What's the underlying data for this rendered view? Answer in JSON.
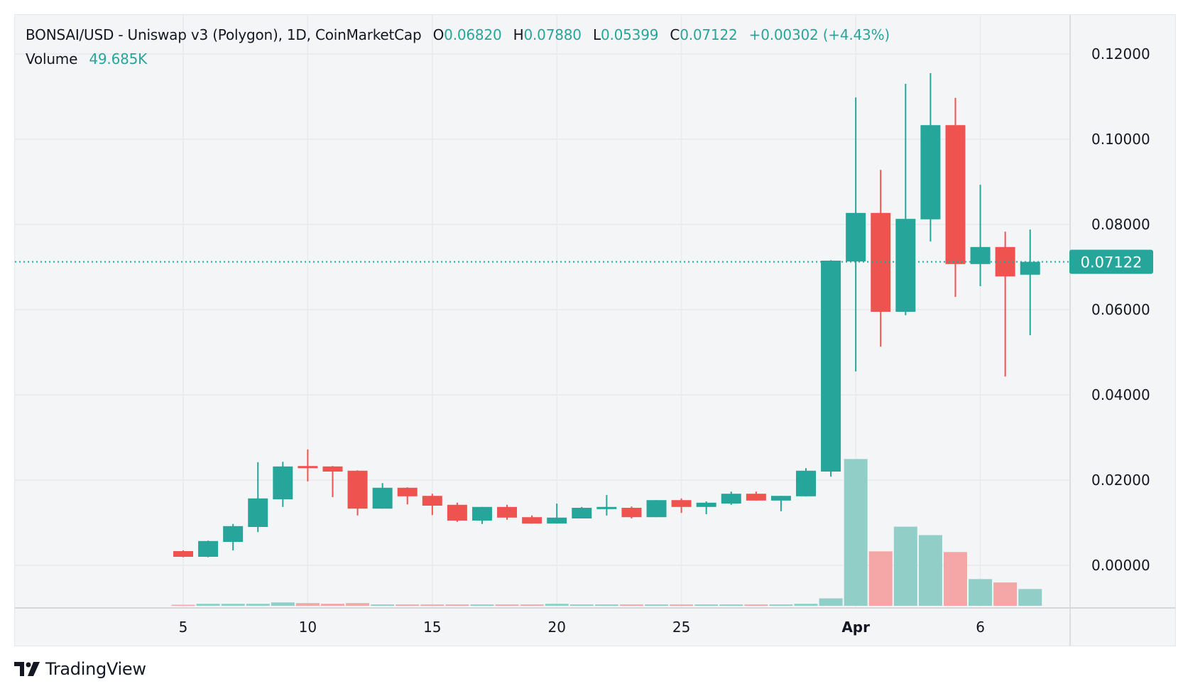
{
  "header": {
    "symbol_title": "BONSAI/USD - Uniswap v3 (Polygon), 1D, CoinMarketCap",
    "open_label": "O",
    "open_value": "0.06820",
    "high_label": "H",
    "high_value": "0.07880",
    "low_label": "L",
    "low_value": "0.05399",
    "close_label": "C",
    "close_value": "0.07122",
    "change": "+0.00302 (+4.43%)",
    "volume_label": "Volume",
    "volume_value": "49.685K"
  },
  "branding": {
    "logo_text": "TradingView"
  },
  "colors": {
    "up": "#26a69a",
    "down": "#ef5350",
    "up_volume": "#92cec8",
    "down_volume": "#f4a7a6",
    "grid": "#e9eaed",
    "background": "#f4f5f7"
  },
  "chart_data": {
    "type": "candlestick",
    "title": "BONSAI/USD - Uniswap v3 (Polygon), 1D, CoinMarketCap",
    "x_tick_labels": [
      {
        "date": "Mar 5",
        "label": "5"
      },
      {
        "date": "Mar 10",
        "label": "10"
      },
      {
        "date": "Mar 15",
        "label": "15"
      },
      {
        "date": "Mar 20",
        "label": "20"
      },
      {
        "date": "Mar 25",
        "label": "25"
      },
      {
        "date": "Apr 1",
        "label": "Apr"
      },
      {
        "date": "Apr 6",
        "label": "6"
      }
    ],
    "y_tick_labels": [
      "0.12000",
      "0.10000",
      "0.08000",
      "0.06000",
      "0.04000",
      "0.02000",
      "0.00000"
    ],
    "y_ticks": [
      0.12,
      0.1,
      0.08,
      0.06,
      0.04,
      0.02,
      0.0
    ],
    "ylim": [
      -0.0095,
      0.1265
    ],
    "grid": true,
    "last_price": 0.07122,
    "last_price_label": "0.07122",
    "volume_unit": "K",
    "candles": [
      {
        "date": "Mar 5",
        "o": 0.00333,
        "h": 0.0035,
        "l": 0.0019,
        "c": 0.002,
        "v": 3
      },
      {
        "date": "Mar 6",
        "o": 0.002,
        "h": 0.0058,
        "l": 0.0019,
        "c": 0.0057,
        "v": 6
      },
      {
        "date": "Mar 7",
        "o": 0.0055,
        "h": 0.0097,
        "l": 0.0035,
        "c": 0.0092,
        "v": 6
      },
      {
        "date": "Mar 8",
        "o": 0.009,
        "h": 0.0242,
        "l": 0.0078,
        "c": 0.0157,
        "v": 6
      },
      {
        "date": "Mar 9",
        "o": 0.0155,
        "h": 0.0243,
        "l": 0.0137,
        "c": 0.0232,
        "v": 10
      },
      {
        "date": "Mar 10",
        "o": 0.0233,
        "h": 0.0272,
        "l": 0.0197,
        "c": 0.0228,
        "v": 8
      },
      {
        "date": "Mar 11",
        "o": 0.0232,
        "h": 0.0233,
        "l": 0.016,
        "c": 0.022,
        "v": 6
      },
      {
        "date": "Mar 12",
        "o": 0.0222,
        "h": 0.0223,
        "l": 0.0117,
        "c": 0.0133,
        "v": 8
      },
      {
        "date": "Mar 13",
        "o": 0.0133,
        "h": 0.0193,
        "l": 0.0133,
        "c": 0.0182,
        "v": 4
      },
      {
        "date": "Mar 14",
        "o": 0.0182,
        "h": 0.0183,
        "l": 0.0143,
        "c": 0.0162,
        "v": 4
      },
      {
        "date": "Mar 15",
        "o": 0.0163,
        "h": 0.0168,
        "l": 0.0118,
        "c": 0.014,
        "v": 4
      },
      {
        "date": "Mar 16",
        "o": 0.0142,
        "h": 0.0147,
        "l": 0.0102,
        "c": 0.0105,
        "v": 4
      },
      {
        "date": "Mar 17",
        "o": 0.0105,
        "h": 0.0137,
        "l": 0.0097,
        "c": 0.0137,
        "v": 4
      },
      {
        "date": "Mar 18",
        "o": 0.0137,
        "h": 0.0142,
        "l": 0.0107,
        "c": 0.0112,
        "v": 4
      },
      {
        "date": "Mar 19",
        "o": 0.0113,
        "h": 0.0117,
        "l": 0.0098,
        "c": 0.0098,
        "v": 4
      },
      {
        "date": "Mar 20",
        "o": 0.0098,
        "h": 0.0145,
        "l": 0.0098,
        "c": 0.0112,
        "v": 6
      },
      {
        "date": "Mar 21",
        "o": 0.011,
        "h": 0.0137,
        "l": 0.011,
        "c": 0.0135,
        "v": 4
      },
      {
        "date": "Mar 22",
        "o": 0.0132,
        "h": 0.0165,
        "l": 0.0117,
        "c": 0.0137,
        "v": 4
      },
      {
        "date": "Mar 23",
        "o": 0.0135,
        "h": 0.0138,
        "l": 0.011,
        "c": 0.0113,
        "v": 4
      },
      {
        "date": "Mar 24",
        "o": 0.0113,
        "h": 0.0153,
        "l": 0.0113,
        "c": 0.0153,
        "v": 4
      },
      {
        "date": "Mar 25",
        "o": 0.0153,
        "h": 0.0157,
        "l": 0.0123,
        "c": 0.0137,
        "v": 4
      },
      {
        "date": "Mar 26",
        "o": 0.0137,
        "h": 0.015,
        "l": 0.012,
        "c": 0.0147,
        "v": 4
      },
      {
        "date": "Mar 27",
        "o": 0.0145,
        "h": 0.0173,
        "l": 0.0142,
        "c": 0.0168,
        "v": 4
      },
      {
        "date": "Mar 28",
        "o": 0.0168,
        "h": 0.0173,
        "l": 0.0152,
        "c": 0.0152,
        "v": 4
      },
      {
        "date": "Mar 29",
        "o": 0.0152,
        "h": 0.0163,
        "l": 0.0127,
        "c": 0.0163,
        "v": 4
      },
      {
        "date": "Mar 30",
        "o": 0.0162,
        "h": 0.0228,
        "l": 0.0162,
        "c": 0.0222,
        "v": 6
      },
      {
        "date": "Mar 31",
        "o": 0.022,
        "h": 0.0716,
        "l": 0.0208,
        "c": 0.0715,
        "v": 22
      },
      {
        "date": "Apr 1",
        "o": 0.0713,
        "h": 0.1098,
        "l": 0.0455,
        "c": 0.0827,
        "v": 434
      },
      {
        "date": "Apr 2",
        "o": 0.0827,
        "h": 0.0928,
        "l": 0.0513,
        "c": 0.0595,
        "v": 161
      },
      {
        "date": "Apr 3",
        "o": 0.0595,
        "h": 0.113,
        "l": 0.0587,
        "c": 0.0813,
        "v": 234
      },
      {
        "date": "Apr 4",
        "o": 0.0812,
        "h": 0.1155,
        "l": 0.076,
        "c": 0.1033,
        "v": 209
      },
      {
        "date": "Apr 5",
        "o": 0.1033,
        "h": 0.1097,
        "l": 0.063,
        "c": 0.0707,
        "v": 159
      },
      {
        "date": "Apr 6",
        "o": 0.0707,
        "h": 0.0893,
        "l": 0.0655,
        "c": 0.0747,
        "v": 79
      },
      {
        "date": "Apr 7",
        "o": 0.0747,
        "h": 0.0783,
        "l": 0.0443,
        "c": 0.0678,
        "v": 69
      },
      {
        "date": "Apr 8",
        "o": 0.0682,
        "h": 0.0788,
        "l": 0.05399,
        "c": 0.07122,
        "v": 49.685
      }
    ]
  }
}
